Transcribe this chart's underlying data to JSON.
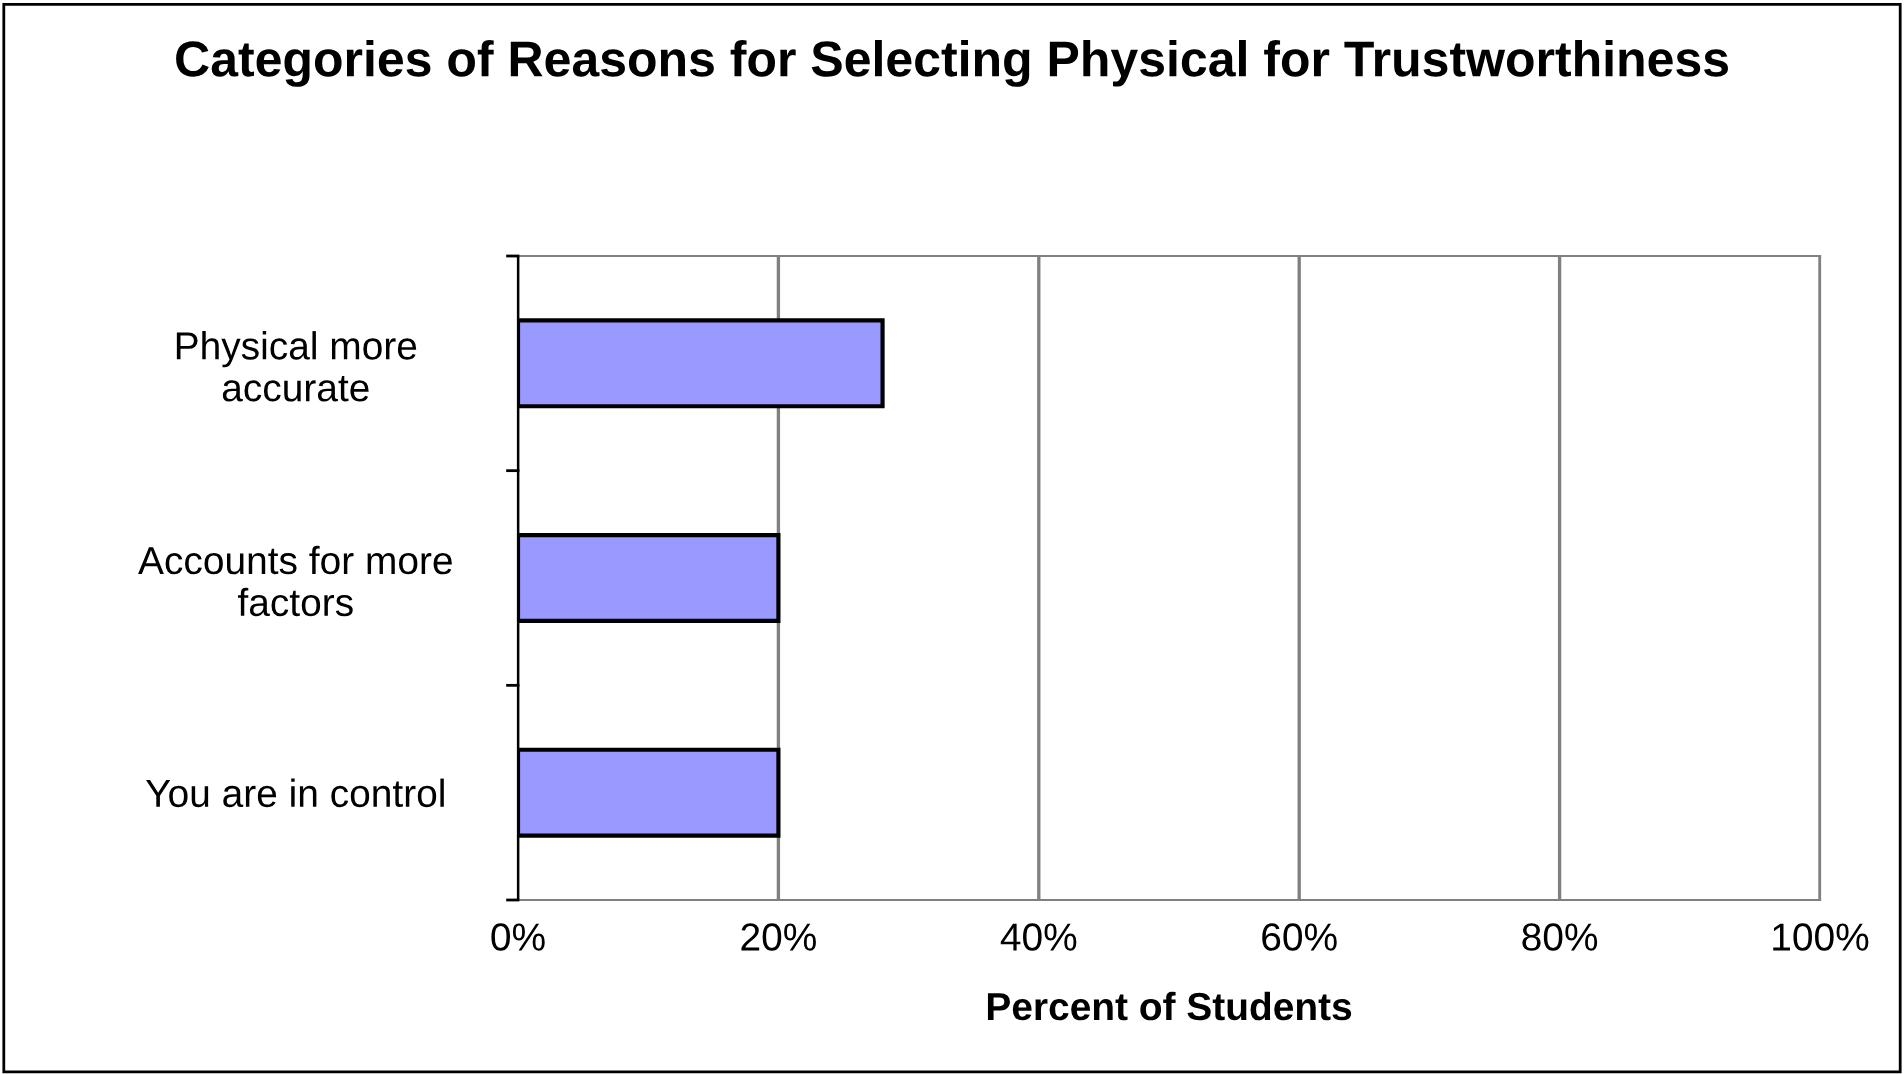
{
  "chart_data": {
    "type": "bar",
    "orientation": "horizontal",
    "title": "Categories of Reasons for Selecting Physical for Trustworthiness",
    "xlabel": "Percent of Students",
    "categories": [
      "Physical more\naccurate",
      "Accounts for more\nfactors",
      "You are in control"
    ],
    "values": [
      28,
      20,
      20
    ],
    "color": "#9999ff",
    "xlim": [
      0,
      100
    ],
    "xticks": [
      {
        "value": 0,
        "label": "0%"
      },
      {
        "value": 20,
        "label": "20%"
      },
      {
        "value": 40,
        "label": "40%"
      },
      {
        "value": 60,
        "label": "60%"
      },
      {
        "value": 80,
        "label": "80%"
      },
      {
        "value": 100,
        "label": "100%"
      }
    ],
    "grid": "x",
    "legend": false
  }
}
